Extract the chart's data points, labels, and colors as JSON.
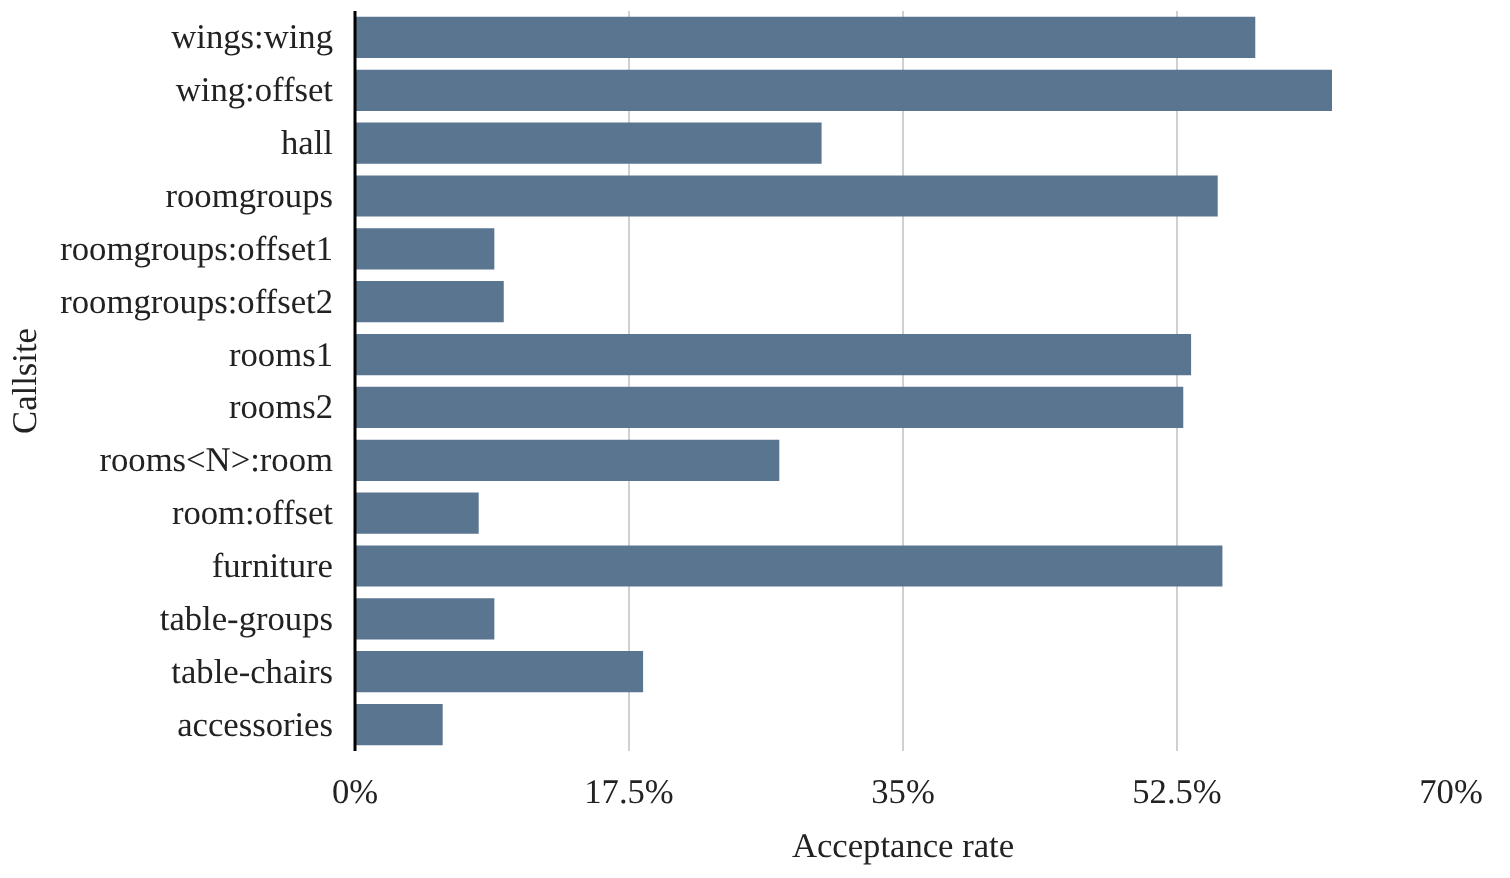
{
  "chart_data": {
    "type": "bar",
    "orientation": "horizontal",
    "xlabel": "Acceptance rate",
    "ylabel": "Callsite",
    "categories": [
      "wings:wing",
      "wing:offset",
      "hall",
      "roomgroups",
      "roomgroups:offset1",
      "roomgroups:offset2",
      "rooms1",
      "rooms2",
      "rooms<N>:room",
      "room:offset",
      "furniture",
      "table-groups",
      "table-chairs",
      "accessories"
    ],
    "values": [
      57.5,
      62.4,
      29.8,
      55.1,
      8.9,
      9.5,
      53.4,
      52.9,
      27.1,
      7.9,
      55.4,
      8.9,
      18.4,
      5.6
    ],
    "color": "#5a7590",
    "xlim": [
      0,
      70
    ],
    "xticks": [
      {
        "value": 0,
        "label": "0%"
      },
      {
        "value": 17.5,
        "label": "17.5%"
      },
      {
        "value": 35,
        "label": "35%"
      },
      {
        "value": 52.5,
        "label": "52.5%"
      },
      {
        "value": 70,
        "label": "70%"
      }
    ],
    "grid": "x"
  }
}
